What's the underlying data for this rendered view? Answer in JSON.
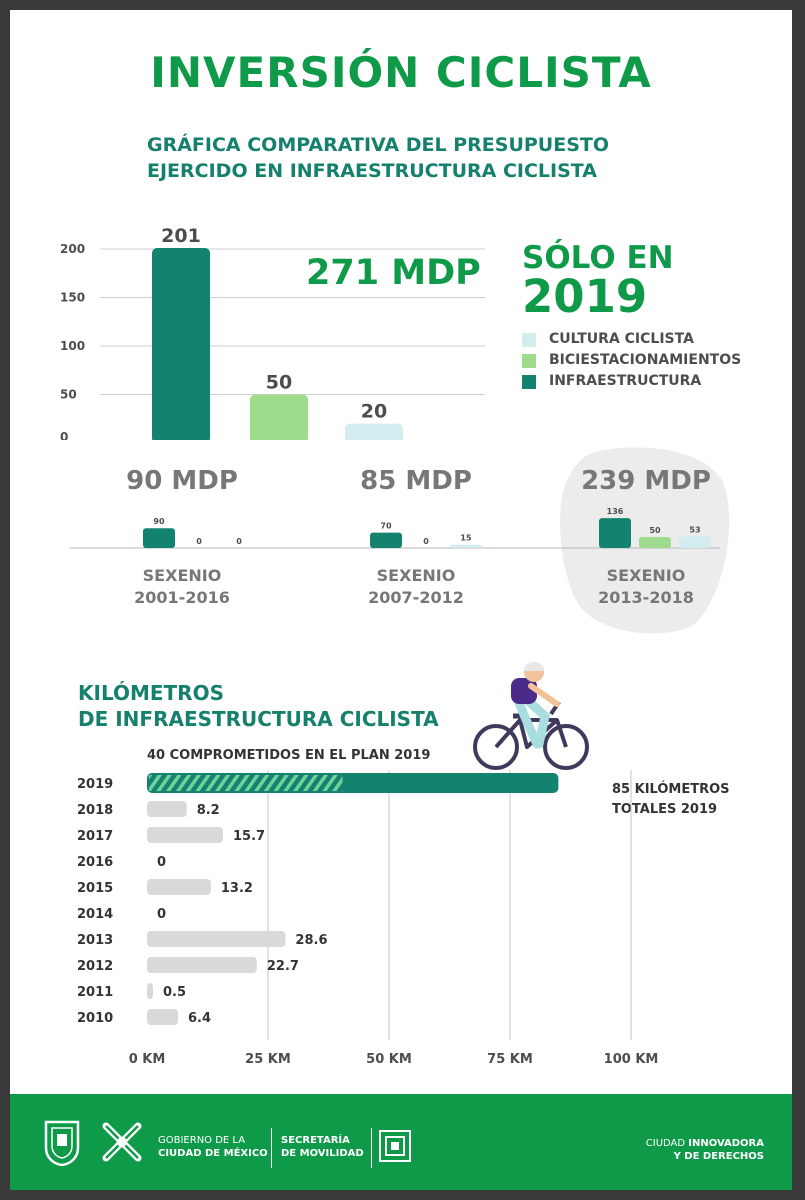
{
  "title": "INVERSIÓN CICLISTA",
  "subtitle_line1": "GRÁFICA COMPARATIVA DEL PRESUPUESTO",
  "subtitle_line2": "EJERCIDO EN INFRAESTRUCTURA CICLISTA",
  "highlight": {
    "line1": "SÓLO EN",
    "line2": "2019",
    "total": "271 MDP"
  },
  "legend": [
    {
      "label": "CULTURA CICLISTA",
      "color": "#d3ecef"
    },
    {
      "label": "BICIESTACIONAMIENTOS",
      "color": "#9fdb8d"
    },
    {
      "label": "INFRAESTRUCTURA",
      "color": "#13826e"
    }
  ],
  "sexenios": [
    {
      "total": "90 MDP",
      "line1": "SEXENIO",
      "line2": "2001-2016"
    },
    {
      "total": "85 MDP",
      "line1": "SEXENIO",
      "line2": "2007-2012"
    },
    {
      "total": "239 MDP",
      "line1": "SEXENIO",
      "line2": "2013-2018"
    }
  ],
  "km_section": {
    "title_line1": "KILÓMETROS",
    "title_line2": "DE INFRAESTRUCTURA CICLISTA",
    "note": "40 COMPROMETIDOS EN EL PLAN 2019",
    "total_line1": "85 KILÓMETROS",
    "total_line2": "TOTALES 2019"
  },
  "footer": {
    "gov_line1": "GOBIERNO DE LA",
    "gov_line2": "CIUDAD DE MÉXICO",
    "sec_line1": "SECRETARÍA",
    "sec_line2": "DE MOVILIDAD",
    "slogan_a": "CIUDAD ",
    "slogan_b": "INNOVADORA",
    "slogan_line2": "Y DE DERECHOS"
  },
  "chart_data": [
    {
      "type": "bar",
      "title": "GRÁFICA COMPARATIVA DEL PRESUPUESTO EJERCIDO EN INFRAESTRUCTURA CICLISTA",
      "categories": [
        "INFRAESTRUCTURA",
        "BICIESTACIONAMIENTOS",
        "CULTURA CICLISTA"
      ],
      "values": [
        201,
        50,
        20
      ],
      "colors": [
        "#13826e",
        "#9fdb8d",
        "#d3ecef"
      ],
      "yticks": [
        0,
        50,
        100,
        150,
        200
      ],
      "ylim": [
        0,
        210
      ],
      "grid": true
    },
    {
      "type": "bar",
      "groups": [
        "SEXENIO 2001-2016",
        "SEXENIO 2007-2012",
        "SEXENIO 2013-2018"
      ],
      "series": [
        {
          "name": "INFRAESTRUCTURA",
          "values": [
            90,
            70,
            136
          ],
          "color": "#13826e"
        },
        {
          "name": "BICIESTACIONAMIENTOS",
          "values": [
            0,
            0,
            50
          ],
          "color": "#9fdb8d"
        },
        {
          "name": "CULTURA CICLISTA",
          "values": [
            0,
            15,
            53
          ],
          "color": "#d3ecef"
        }
      ]
    },
    {
      "type": "bar",
      "orientation": "horizontal",
      "categories": [
        "2019",
        "2018",
        "2017",
        "2016",
        "2015",
        "2014",
        "2013",
        "2012",
        "2011",
        "2010"
      ],
      "values": [
        85,
        8.2,
        15.7,
        0,
        13.2,
        0,
        28.6,
        22.7,
        0.5,
        6.4
      ],
      "labels": [
        "",
        "8.2",
        "15.7",
        "0",
        "13.2",
        "0",
        "28.6",
        "22.7",
        "0.5",
        "6.4"
      ],
      "committed_2019": 40,
      "xticks": [
        "0 KM",
        "25 KM",
        "50 KM",
        "75 KM",
        "100 KM"
      ],
      "xlim": [
        0,
        100
      ],
      "grid": true
    }
  ]
}
